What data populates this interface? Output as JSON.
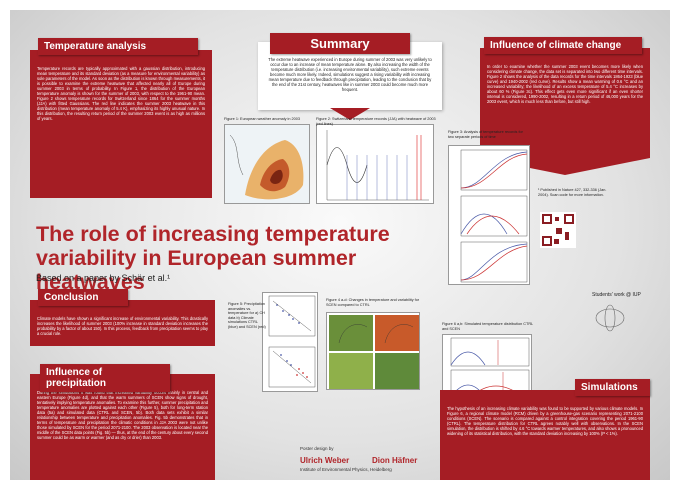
{
  "title": "The role of increasing temperature variability in European summer heatwaves",
  "subtitle": "Based on a paper by Schär et al.¹",
  "sections": {
    "temperature_analysis": {
      "heading": "Temperature analysis",
      "body": "Temperature records are typically approximated with a gaussian distribution, introducing mean temperature and its standard deviation (as a measure for environmental variability) as sole parameters of the model. As soon as the distribution is known through measurements, it is possible to examine the extreme heatwave that affected nearly all of Europe during summer 2003 in terms of probability. In Figure 1, the distribution of the European temperature anomaly is shown for the summer of 2003, with respect to the 1961-90 mean. Figure 2 shows temperature records for Switzerland since 1864 for the summer months (JJA) with fitted Gaussians. The red line indicates the summer 2003 heatwave in this distribution (mean temperature anomaly of 5.4 K), emphasizing its highly unusual nature. In this distribution, the resulting return period of the summer 2003 event is as high as millions of years."
    },
    "summary": {
      "heading": "Summary",
      "body": "The extreme heatwave experienced in Europe during summer of 2003 was very unlikely to occur due to an increase of mean temperature alone. By also increasing the width of the temperature distribution (i.e. increasing environmental variability), such extreme events become much more likely. Indeed, simulations suggest a rising variability with increasing mean temperature due to feedback through precipitation, leading to the conclusion that by the end of the 21st century, heatwaves like in summer 2003 could become much more frequent."
    },
    "climate_change": {
      "heading": "Influence of climate change",
      "body": "In order to examine whether the summer 2003 event becomes more likely when considering climate change, the data set is separated into two different time intervals. Figure 2 shows the analysis of the data records for the time intervals 1864-1923 (blue curve) and 1940-2002 (red curve). Results show a mean warming of 0.6 °C and an increased variability; the likelihood of an excess temperature of 5.4 °C increases by about 60 % (Figure 3c). This effect gets even more significant if an even shorter interval is considered, 1990-2002, resulting in a return period of 46,000 years for the 2003 event, which is much less than before, but still high."
    },
    "conclusion": {
      "heading": "Conclusion",
      "body": "Climate models have shown a significant increase of environmental variability. This drastically increases the likelihood of summer 2003 (100% increase in standard deviation increases the probability by a factor of about 150). In this process, feedback from precipitation seems to play a crucial role."
    },
    "precipitation": {
      "heading": "Influence of precipitation",
      "body": "During the simulations it was found that increased variability occurs mainly in central and eastern Europe (Figure 4d), and that the warm summers of SCEN show signs of drought, tentatively implying temperature anomalies. To examine this further, summer precipitation and temperature anomalies are plotted against each other (Figure 5), both for long-term station data (5a) and simulated data (CTRL and SCEN, 5b). Both data sets exhibit a similar relationship between temperature and precipitation anomalies. Fig. 5b demonstrates that in terms of temperature and precipitation the climatic conditions in JJA 2003 were not unlike those simulated by SCEN for the period 2071-2100. The 2003 observation is located near the middle of the SCEN data points (Fig. 5b) — thus, at the end of the century about every second summer could be as warm or warmer (and as dry or drier) than 2003."
    },
    "simulations": {
      "heading": "Simulations",
      "body": "The hypothesis of an increasing climate variability was found to be supported by various climate models. In Figure 6, a regional climate model (RCM) driven by a greenhouse-gas scenario representing 2071-2100 conditions (SCEN). The scenario is compared against a control integration covering the period 1961-90 (CTRL). The temperature distribution for CTRL agrees notably well with observations. In the SCEN simulation, the distribution is shifted by 4.6 °C towards warmer temperatures, and also shows a pronounced widening of its statistical distribution, with the standard deviation increasing by 100% (P < 1%)."
    }
  },
  "figures": {
    "fig1": "Figure 1: European weather anomaly in 2003",
    "fig3": "Figure 2: Switzerland temperature records (JJA) with heatwave of 2003 (red lines)",
    "fig2": "Figure 3: Analysis of temperature records for two separate periods of time",
    "fig5": "Figure 5: Precipitation anomalies vs. temperature for a) CH data b) Climate simulations CTRL (blue) and SCEN (red)",
    "fig4": "Figure 4 a-d: Changes in temperature and variability for SCEN compared to CTRL",
    "fig6": "Figure 6 a,b: Simulated temperature distribution CTRL and SCEN"
  },
  "reference": "¹ Published in Nature 427, 332-336 (Jan. 2004). Scan code for more information.",
  "students": "Students' work @ IUP",
  "footer": {
    "design": "Poster design by",
    "author1": "Ulrich Weber",
    "author2": "Dion Häfner",
    "institute": "Institute of Environmental Physics, Heidelberg"
  }
}
